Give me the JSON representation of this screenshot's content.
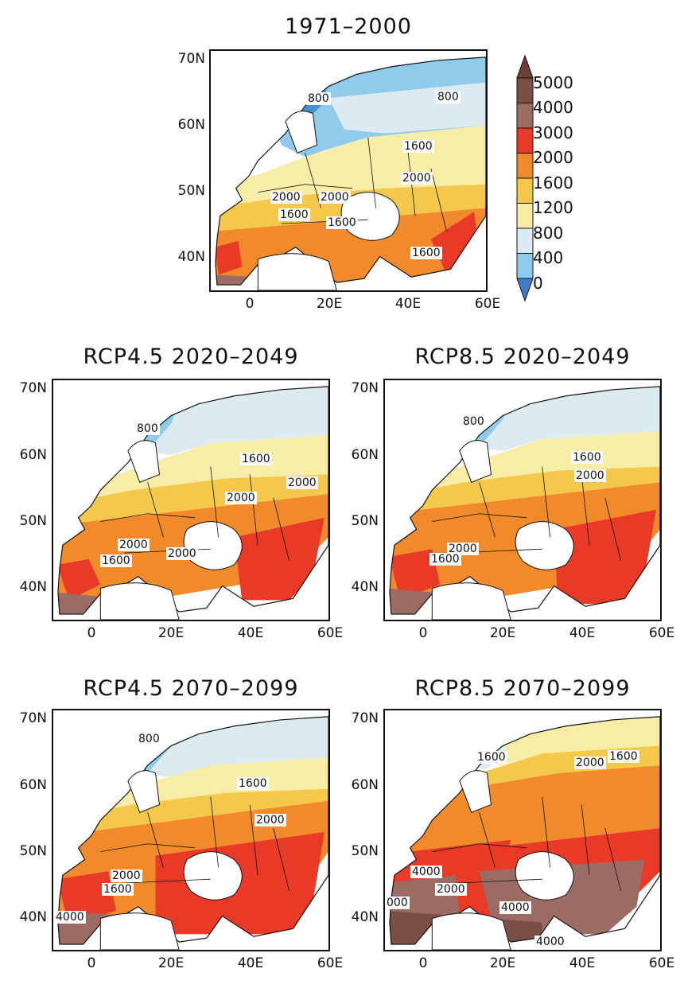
{
  "color_scale": {
    "labels": [
      "5000",
      "4000",
      "3000",
      "2000",
      "1600",
      "1200",
      "800",
      "400",
      "0"
    ],
    "colors": [
      "#7a4f46",
      "#9c6c64",
      "#e83a26",
      "#f08a2a",
      "#f4c84a",
      "#f7eda6",
      "#dcebf2",
      "#8fcbea",
      "#4a8fcf"
    ],
    "upper_arrow_color": "#6b3f36",
    "lower_arrow_color": "#3f7fca"
  },
  "lat_ticks": [
    "70N",
    "60N",
    "50N",
    "40N"
  ],
  "lon_ticks": [
    "0",
    "20E",
    "40E",
    "60E"
  ],
  "panels": [
    {
      "title": "1971–2000",
      "labels": [
        "800",
        "800",
        "1600",
        "2000",
        "2000",
        "2000",
        "1600",
        "1600",
        "1600"
      ]
    },
    {
      "title": "RCP4.5  2020–2049",
      "labels": [
        "800",
        "1600",
        "2000",
        "2000",
        "2000",
        "2000",
        "1600"
      ]
    },
    {
      "title": "RCP8.5  2020–2049",
      "labels": [
        "800",
        "1600",
        "2000",
        "2000",
        "1600"
      ]
    },
    {
      "title": "RCP4.5  2070–2099",
      "labels": [
        "800",
        "1600",
        "2000",
        "2000",
        "1600",
        "4000"
      ]
    },
    {
      "title": "RCP8.5  2070–2099",
      "labels": [
        "1600",
        "2000",
        "1600",
        "4000",
        "2000",
        "000",
        "4000",
        "4000"
      ]
    }
  ]
}
